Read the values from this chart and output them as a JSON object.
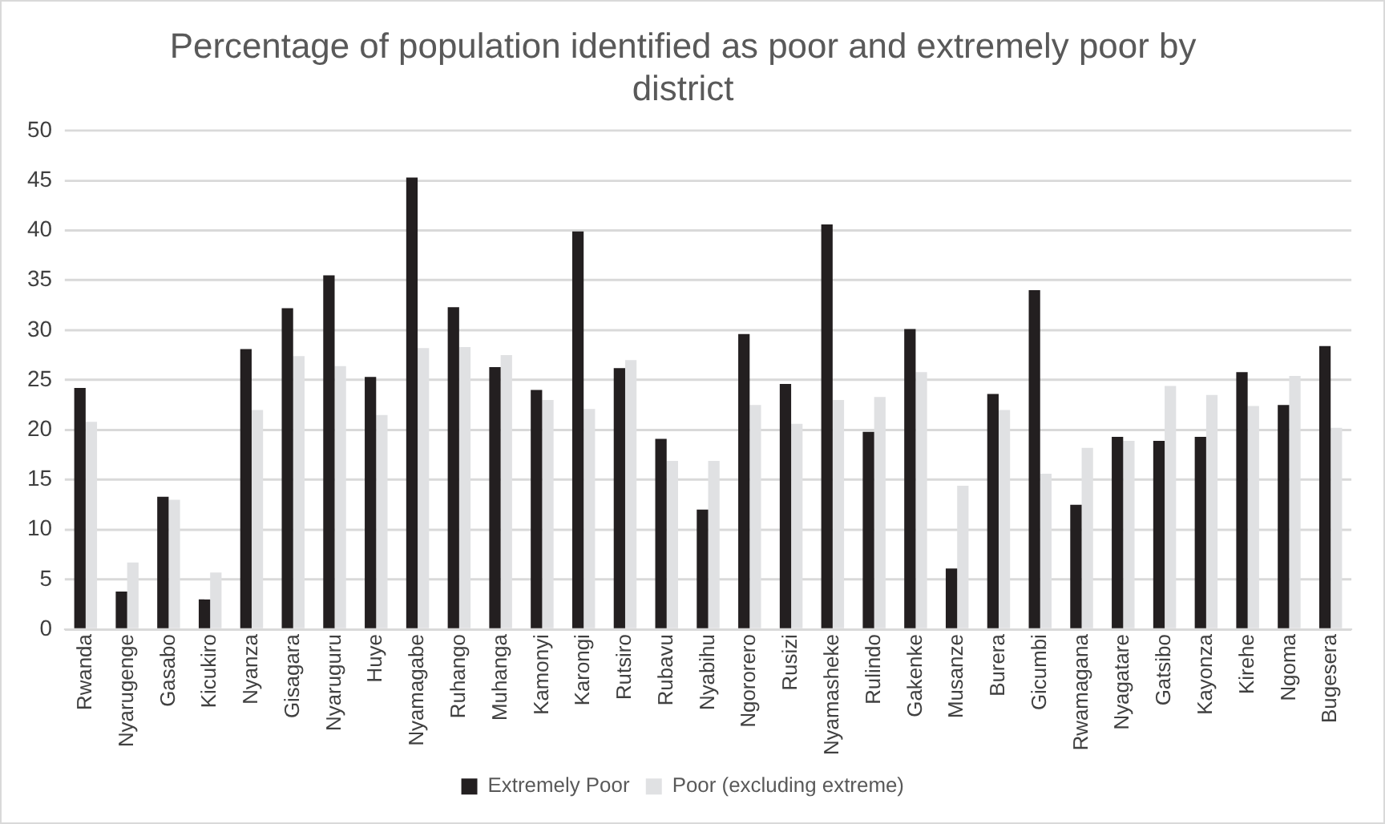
{
  "chart_data": {
    "type": "bar",
    "title": "Percentage of population identified as poor and extremely poor by district",
    "categories": [
      "Rwanda",
      "Nyarugenge",
      "Gasabo",
      "Kicukiro",
      "Nyanza",
      "Gisagara",
      "Nyaruguru",
      "Huye",
      "Nyamagabe",
      "Ruhango",
      "Muhanga",
      "Kamonyi",
      "Karongi",
      "Rutsiro",
      "Rubavu",
      "Nyabihu",
      "Ngororero",
      "Rusizi",
      "Nyamasheke",
      "Rulindo",
      "Gakenke",
      "Musanze",
      "Burera",
      "Gicumbi",
      "Rwamagana",
      "Nyagatare",
      "Gatsibo",
      "Kayonza",
      "Kirehe",
      "Ngoma",
      "Bugesera"
    ],
    "series": [
      {
        "name": "Extremely Poor",
        "color": "#231f20",
        "values": [
          24.2,
          3.8,
          13.3,
          3.0,
          28.1,
          32.2,
          35.5,
          25.3,
          45.3,
          32.3,
          26.3,
          24.0,
          39.9,
          26.2,
          19.1,
          12.0,
          29.6,
          24.6,
          40.6,
          19.8,
          30.1,
          6.1,
          23.6,
          34.0,
          12.5,
          19.3,
          18.9,
          19.3,
          25.8,
          22.5,
          28.4
        ]
      },
      {
        "name": "Poor (excluding extreme)",
        "color": "#e0e1e3",
        "values": [
          20.8,
          6.7,
          13.0,
          5.7,
          22.0,
          27.4,
          26.4,
          21.5,
          28.2,
          28.3,
          27.5,
          23.0,
          22.1,
          27.0,
          16.9,
          16.9,
          22.5,
          20.6,
          23.0,
          23.3,
          25.8,
          14.4,
          22.0,
          15.6,
          18.2,
          18.9,
          24.4,
          23.5,
          22.4,
          25.4,
          20.2
        ]
      }
    ],
    "ylim": [
      0,
      50
    ],
    "yticks": [
      0,
      5,
      10,
      15,
      20,
      25,
      30,
      35,
      40,
      45,
      50
    ],
    "grid": "y",
    "legend": "bottom"
  }
}
